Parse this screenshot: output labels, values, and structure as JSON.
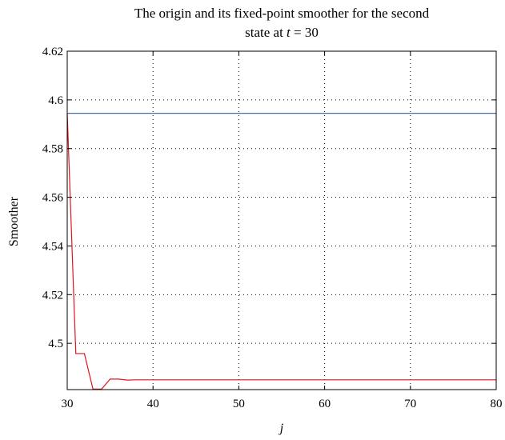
{
  "chart_data": {
    "type": "line",
    "title_lines": [
      "The origin and its fixed-point smoother for the second",
      "state at "
    ],
    "title_var": "t",
    "title_tail": " = 30",
    "xlabel": "j",
    "ylabel": "Smoother",
    "xlim": [
      30,
      80
    ],
    "ylim": [
      4.481,
      4.62
    ],
    "xticks": [
      30,
      40,
      50,
      60,
      70,
      80
    ],
    "yticks": [
      4.5,
      4.52,
      4.54,
      4.56,
      4.58,
      4.6,
      4.62
    ],
    "xtick_labels": [
      "30",
      "40",
      "50",
      "60",
      "70",
      "80"
    ],
    "ytick_labels": [
      "4.5",
      "4.52",
      "4.54",
      "4.56",
      "4.58",
      "4.6",
      "4.62"
    ],
    "grid": true,
    "grid_style": "dotted",
    "series": [
      {
        "color": "#4a6fa5",
        "x": [
          30,
          80
        ],
        "y": [
          4.5945,
          4.5945
        ]
      },
      {
        "color": "#e0141e",
        "x": [
          30,
          31,
          32,
          33,
          34,
          35,
          36,
          37,
          38,
          39,
          40,
          45,
          50,
          60,
          70,
          80
        ],
        "y": [
          4.5945,
          4.4958,
          4.4958,
          4.4812,
          4.4812,
          4.4853,
          4.4853,
          4.4849,
          4.485,
          4.485,
          4.485,
          4.485,
          4.485,
          4.485,
          4.485,
          4.485
        ]
      }
    ]
  }
}
